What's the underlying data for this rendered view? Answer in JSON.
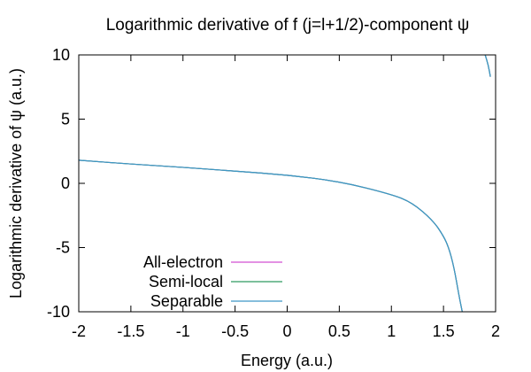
{
  "chart_data": {
    "type": "line",
    "title": "Logarithmic derivative of f (j=l+1/2)-component ψ",
    "xlabel": "Energy (a.u.)",
    "ylabel": "Logarithmic derivative of ψ (a.u.)",
    "xlim": [
      -2,
      2
    ],
    "ylim": [
      -10,
      10
    ],
    "xticks": [
      -2,
      -1.5,
      -1,
      -0.5,
      0,
      0.5,
      1,
      1.5,
      2
    ],
    "yticks": [
      -10,
      -5,
      0,
      5,
      10
    ],
    "xtick_labels": [
      "-2",
      "-1.5",
      "-1",
      "-0.5",
      "0",
      "0.5",
      "1",
      "1.5",
      "2"
    ],
    "ytick_labels": [
      "-10",
      "-5",
      "0",
      "5",
      "10"
    ],
    "grid": false,
    "legend_position": "bottom-left",
    "series": [
      {
        "name": "All-electron",
        "color": "#d24fd2",
        "x": [
          -2.0,
          -1.5,
          -1.0,
          -0.5,
          0.0,
          0.5,
          1.0,
          1.2,
          1.4,
          1.5,
          1.55,
          1.6,
          1.65,
          1.68,
          1.9,
          1.93,
          1.95
        ],
        "y": [
          1.8,
          1.5,
          1.25,
          0.95,
          0.65,
          0.15,
          -0.85,
          -1.5,
          -2.9,
          -4.1,
          -5.0,
          -6.5,
          -8.8,
          -10.0,
          10.0,
          9.2,
          8.3
        ]
      },
      {
        "name": "Semi-local",
        "color": "#2e9a62",
        "x": [
          -2.0,
          -1.5,
          -1.0,
          -0.5,
          0.0,
          0.5,
          1.0,
          1.2,
          1.4,
          1.5,
          1.55,
          1.6,
          1.65,
          1.68,
          1.9,
          1.93,
          1.95
        ],
        "y": [
          1.8,
          1.5,
          1.25,
          0.95,
          0.65,
          0.15,
          -0.85,
          -1.5,
          -2.9,
          -4.1,
          -5.0,
          -6.5,
          -8.8,
          -10.0,
          10.0,
          9.2,
          8.3
        ]
      },
      {
        "name": "Separable",
        "color": "#3d98c6",
        "x": [
          -2.0,
          -1.5,
          -1.0,
          -0.5,
          0.0,
          0.5,
          1.0,
          1.2,
          1.4,
          1.5,
          1.55,
          1.6,
          1.65,
          1.68,
          1.9,
          1.93,
          1.95
        ],
        "y": [
          1.8,
          1.5,
          1.25,
          0.95,
          0.65,
          0.15,
          -0.85,
          -1.5,
          -2.9,
          -4.1,
          -5.0,
          -6.5,
          -8.8,
          -10.0,
          10.0,
          9.2,
          8.3
        ]
      }
    ]
  }
}
